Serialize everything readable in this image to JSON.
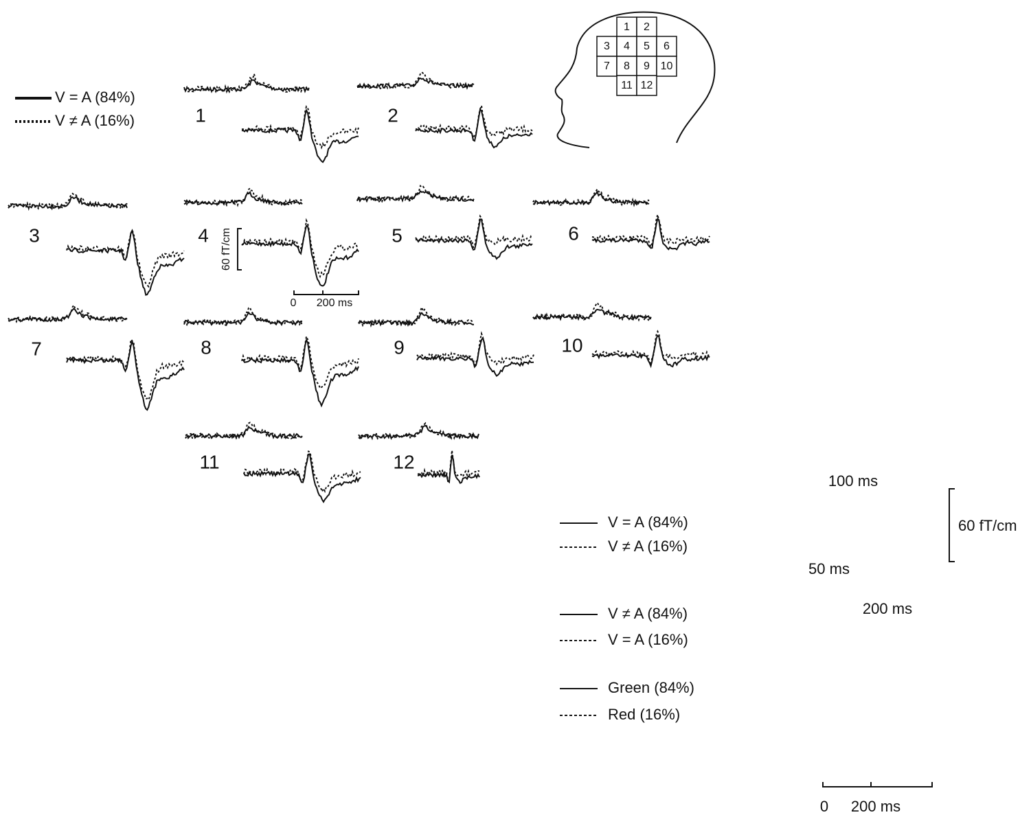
{
  "legend": [
    "V = A (84%)",
    "V ≠ A (16%)"
  ],
  "channels": [
    "1",
    "2",
    "3",
    "4",
    "5",
    "6",
    "7",
    "8",
    "9",
    "10",
    "11",
    "12"
  ],
  "head_map": [
    "1",
    "2",
    "3",
    "4",
    "5",
    "6",
    "7",
    "8",
    "9",
    "10",
    "11",
    "12"
  ],
  "scale_bar": {
    "amplitude": "60 fT/cm",
    "time_start": "0",
    "time_end": "200 ms"
  },
  "detail": {
    "legends": [
      [
        "V = A (84%)",
        "V ≠ A (16%)"
      ],
      [
        "V ≠ A (84%)",
        "V = A (16%)"
      ],
      [
        "Green (84%)",
        "Red (16%)"
      ]
    ],
    "annotations": [
      "100 ms",
      "50 ms",
      "200 ms"
    ],
    "scale_bar": {
      "amplitude": "60 fT/cm",
      "time_start": "0",
      "time_end": "200 ms"
    }
  }
}
